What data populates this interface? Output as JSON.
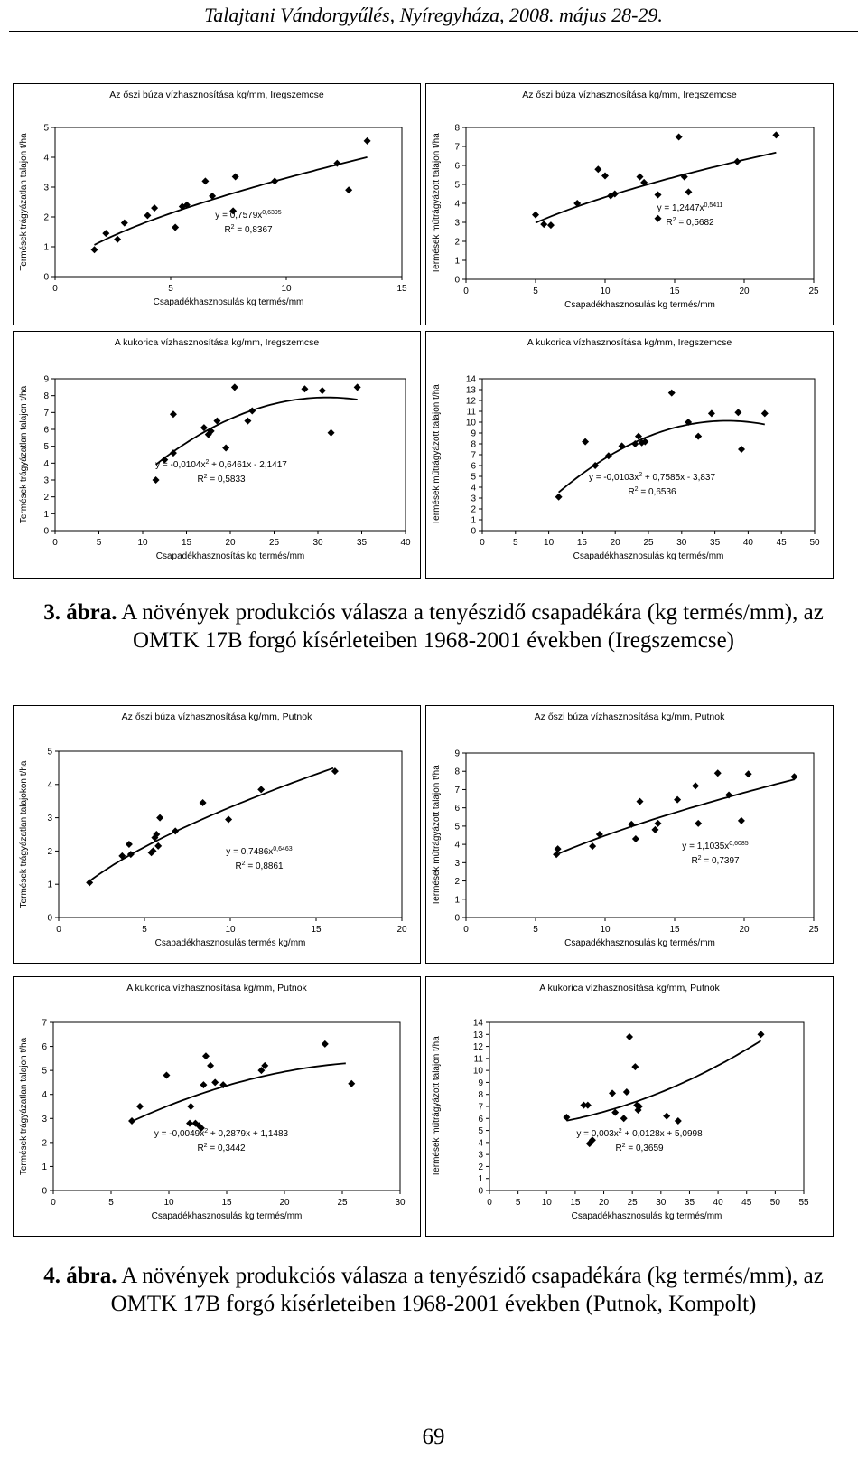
{
  "header": "Talajtani Vándorgyűlés, Nyíregyháza, 2008. május 28-29.",
  "caption3": {
    "label": "3. ábra.",
    "text": " A növények produkciós válasza  a tenyészidő csapadékára (kg termés/mm), az OMTK 17B forgó kísérleteiben 1968-2001 években (Iregszemcse)"
  },
  "caption4": {
    "label": "4. ábra.",
    "text": " A növények produkciós válasza  a tenyészidő csapadékára (kg termés/mm), az OMTK 17B forgó kísérleteiben 1968-2001 években (Putnok, Kompolt)"
  },
  "page_number": "69",
  "colors": {
    "point": "#000000",
    "curve": "#000000",
    "frame": "#000000"
  },
  "chart_data": [
    {
      "type": "scatter",
      "title": "Az őszi búza vízhasznosítása kg/mm, Iregszemcse",
      "xlabel": "Csapadékhasznosulás kg termés/mm",
      "ylabel": "Termések trágyázatlan talajon t/ha",
      "xlim": [
        0,
        15
      ],
      "ylim": [
        0,
        5
      ],
      "xticks": [
        0,
        5,
        10,
        15
      ],
      "yticks": [
        0,
        1,
        2,
        3,
        4,
        5
      ],
      "x": [
        1.7,
        2.2,
        2.7,
        3.0,
        4.0,
        4.3,
        5.2,
        5.5,
        5.7,
        6.5,
        6.8,
        7.7,
        7.8,
        9.5,
        12.2,
        12.7,
        13.5
      ],
      "y": [
        0.9,
        1.45,
        1.25,
        1.8,
        2.05,
        2.3,
        1.65,
        2.35,
        2.4,
        3.2,
        2.7,
        2.2,
        3.35,
        3.2,
        3.8,
        2.9,
        4.55
      ],
      "trendline": {
        "kind": "power",
        "a": 0.7579,
        "b": 0.6395,
        "x_from": 1.7,
        "x_to": 13.5
      },
      "equation": {
        "base": "y = 0,7579x",
        "exp": "0,6395",
        "r2_value": " = 0,8367"
      }
    },
    {
      "type": "scatter",
      "title": "Az őszi búza vízhasznosítása kg/mm, Iregszemcse",
      "xlabel": "Csapadékhasznosulás kg termés/mm",
      "ylabel": "Termések műtrágyázott talajon t/ha",
      "xlim": [
        0,
        25
      ],
      "ylim": [
        0,
        8
      ],
      "xticks": [
        0,
        5,
        10,
        15,
        20,
        25
      ],
      "yticks": [
        0,
        1,
        2,
        3,
        4,
        5,
        6,
        7,
        8
      ],
      "x": [
        5.0,
        5.6,
        6.1,
        8.0,
        9.5,
        10.0,
        10.4,
        10.7,
        12.5,
        12.8,
        13.8,
        13.8,
        15.3,
        15.7,
        16.0,
        19.5,
        22.3
      ],
      "y": [
        3.4,
        2.9,
        2.85,
        4.0,
        5.8,
        5.45,
        4.4,
        4.5,
        5.4,
        5.1,
        3.2,
        4.45,
        7.5,
        5.4,
        4.6,
        6.2,
        7.6
      ],
      "trendline": {
        "kind": "power",
        "a": 1.2447,
        "b": 0.5411,
        "x_from": 5.0,
        "x_to": 22.3
      },
      "equation": {
        "base": "y = 1,2447x",
        "exp": "0,5411",
        "r2_value": " = 0,5682"
      }
    },
    {
      "type": "scatter",
      "title": "A kukorica vízhasznosítása kg/mm, Iregszemcse",
      "xlabel": "Csapadékhasznosítás kg termés/mm",
      "ylabel": "Termések trágyázatlan talajon t/ha",
      "xlim": [
        0,
        40
      ],
      "ylim": [
        0,
        9
      ],
      "xticks": [
        0,
        5,
        10,
        15,
        20,
        25,
        30,
        35,
        40
      ],
      "yticks": [
        0,
        1,
        2,
        3,
        4,
        5,
        6,
        7,
        8,
        9
      ],
      "x": [
        11.5,
        12.5,
        13.5,
        13.5,
        17.0,
        17.5,
        17.8,
        18.5,
        19.5,
        20.5,
        22.0,
        22.5,
        28.5,
        30.5,
        31.5,
        34.5
      ],
      "y": [
        3.0,
        4.2,
        4.6,
        6.9,
        6.1,
        5.7,
        5.9,
        6.5,
        4.9,
        8.5,
        6.5,
        7.1,
        8.4,
        8.3,
        5.8,
        8.5
      ],
      "trendline": {
        "kind": "poly2",
        "a": -0.0104,
        "b": 0.6461,
        "c": -2.1417,
        "x_from": 11.5,
        "x_to": 34.5
      },
      "equation": {
        "base": "y = -0,0104x",
        "exp": "2",
        "tail": " + 0,6461x - 2,1417",
        "r2_value": " = 0,5833"
      }
    },
    {
      "type": "scatter",
      "title": "A kukorica vízhasznosítása kg/mm, Iregszemcse",
      "xlabel": "Csapadékhasznosulás kg termés/mm",
      "ylabel": "Termések műtrágyázott talajon t/ha",
      "xlim": [
        0,
        50
      ],
      "ylim": [
        0,
        14
      ],
      "xticks": [
        0,
        5,
        10,
        15,
        20,
        25,
        30,
        35,
        40,
        45,
        50
      ],
      "yticks": [
        0,
        1,
        2,
        3,
        4,
        5,
        6,
        7,
        8,
        9,
        10,
        11,
        12,
        13,
        14
      ],
      "x": [
        11.5,
        15.5,
        17.0,
        19.0,
        21.0,
        23.0,
        23.5,
        24.0,
        24.5,
        28.5,
        31.0,
        32.5,
        34.5,
        38.5,
        39.0,
        42.5
      ],
      "y": [
        3.1,
        8.2,
        6.0,
        6.9,
        7.8,
        8.0,
        8.7,
        8.1,
        8.2,
        12.7,
        10.0,
        8.7,
        10.8,
        10.9,
        7.5,
        10.8
      ],
      "trendline": {
        "kind": "poly2",
        "a": -0.0103,
        "b": 0.7585,
        "c": -3.837,
        "x_from": 11.5,
        "x_to": 42.5
      },
      "equation": {
        "base": "y = -0,0103x",
        "exp": "2",
        "tail": " + 0,7585x - 3,837",
        "r2_value": " = 0,6536"
      }
    },
    {
      "type": "scatter",
      "title": "Az őszi búza vízhasznosítása kg/mm, Putnok",
      "xlabel": "Csapadékhasznosulás termés kg/mm",
      "ylabel": "Termések trágyázatlan talajokon t/ha",
      "xlim": [
        0,
        20
      ],
      "ylim": [
        0,
        5
      ],
      "xticks": [
        0,
        5,
        10,
        15,
        20
      ],
      "yticks": [
        0,
        1,
        2,
        3,
        4,
        5
      ],
      "x": [
        1.8,
        3.7,
        4.1,
        4.2,
        5.4,
        5.5,
        5.6,
        5.7,
        5.8,
        5.9,
        6.8,
        8.4,
        9.9,
        11.8,
        16.1
      ],
      "y": [
        1.05,
        1.85,
        2.2,
        1.9,
        1.95,
        2.0,
        2.4,
        2.5,
        2.15,
        3.0,
        2.6,
        3.45,
        2.95,
        3.85,
        4.4
      ],
      "trendline": {
        "kind": "power",
        "a": 0.7486,
        "b": 0.6463,
        "x_from": 1.8,
        "x_to": 16.0
      },
      "equation": {
        "base": "y = 0,7486x",
        "exp": "0,6463",
        "r2_value": " = 0,8861"
      }
    },
    {
      "type": "scatter",
      "title": "Az őszi búza vízhasznosítása kg/mm, Putnok",
      "xlabel": "Csapadékhasznosulás kg termés/mm",
      "ylabel": "Termések műtrágyázott talajon t/ha",
      "xlim": [
        0,
        25
      ],
      "ylim": [
        0,
        9
      ],
      "xticks": [
        0,
        5,
        10,
        15,
        20,
        25
      ],
      "yticks": [
        0,
        1,
        2,
        3,
        4,
        5,
        6,
        7,
        8,
        9
      ],
      "x": [
        6.5,
        6.6,
        9.1,
        9.6,
        11.9,
        12.2,
        12.5,
        13.6,
        13.8,
        15.2,
        16.5,
        16.7,
        18.1,
        18.9,
        19.8,
        20.3,
        23.6
      ],
      "y": [
        3.45,
        3.75,
        3.9,
        4.55,
        5.1,
        4.3,
        6.35,
        4.8,
        5.15,
        6.45,
        7.2,
        5.15,
        7.9,
        6.7,
        5.3,
        7.85,
        7.7
      ],
      "trendline": {
        "kind": "power",
        "a": 1.1035,
        "b": 0.6085,
        "x_from": 6.5,
        "x_to": 23.6
      },
      "equation": {
        "base": "y = 1,1035x",
        "exp": "0,6085",
        "r2_value": " = 0,7397"
      }
    },
    {
      "type": "scatter",
      "title": "A kukorica vízhasznosítása kg/mm, Putnok",
      "xlabel": "Csapadékhasznosulás kg termés/mm",
      "ylabel": "Termések trágyázatlan talajon t/ha",
      "xlim": [
        0,
        30
      ],
      "ylim": [
        0,
        7
      ],
      "xticks": [
        0,
        5,
        10,
        15,
        20,
        25,
        30
      ],
      "yticks": [
        0,
        1,
        2,
        3,
        4,
        5,
        6,
        7
      ],
      "x": [
        6.8,
        7.5,
        9.8,
        11.8,
        11.9,
        12.3,
        12.6,
        12.8,
        13.0,
        13.2,
        13.6,
        14.0,
        14.7,
        18.0,
        18.3,
        23.5,
        25.8
      ],
      "y": [
        2.9,
        3.5,
        4.8,
        2.8,
        3.5,
        2.8,
        2.7,
        2.6,
        4.4,
        5.6,
        5.2,
        4.5,
        4.4,
        5.0,
        5.2,
        6.1,
        4.45
      ],
      "trendline": {
        "kind": "poly2",
        "a": -0.0049,
        "b": 0.2879,
        "c": 1.1483,
        "x_from": 6.8,
        "x_to": 25.3
      },
      "equation": {
        "base": "y = -0,0049x",
        "exp": "2",
        "tail": " + 0,2879x + 1,1483",
        "r2_value": " = 0,3442"
      }
    },
    {
      "type": "scatter",
      "title": "A kukorica vízhasznosítása kg/mm, Putnok",
      "xlabel": "Csapadékhasznosulás kg termés/mm",
      "ylabel": "Termések műtrágyázott talajon t/ha",
      "xlim": [
        0,
        55
      ],
      "ylim": [
        0,
        14
      ],
      "xticks": [
        0,
        5,
        10,
        15,
        20,
        25,
        30,
        35,
        40,
        45,
        50,
        55
      ],
      "yticks": [
        0,
        1,
        2,
        3,
        4,
        5,
        6,
        7,
        8,
        9,
        10,
        11,
        12,
        13,
        14
      ],
      "x": [
        13.5,
        16.5,
        17.2,
        17.5,
        18.0,
        21.5,
        22.0,
        23.5,
        24.0,
        24.5,
        25.5,
        25.8,
        26.0,
        26.2,
        31.0,
        33.0,
        47.5
      ],
      "y": [
        6.1,
        7.1,
        7.1,
        3.9,
        4.2,
        8.1,
        6.5,
        6.0,
        8.2,
        12.8,
        10.3,
        7.1,
        6.7,
        7.0,
        6.2,
        5.8,
        13.0
      ],
      "trendline": {
        "kind": "poly2",
        "a": 0.003,
        "b": 0.0128,
        "c": 5.0998,
        "x_from": 13.5,
        "x_to": 47.5
      },
      "equation": {
        "base": "y = 0,003x",
        "exp": "2",
        "tail": " + 0,0128x + 5,0998",
        "r2_value": " = 0,3659"
      }
    }
  ]
}
